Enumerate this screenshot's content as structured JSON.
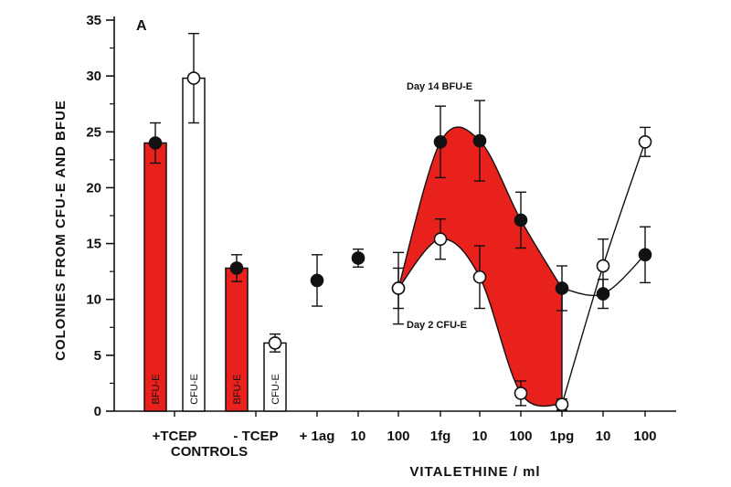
{
  "chart_data": {
    "type": "bar+line",
    "panel_label": "A",
    "ylabel": "COLONIES FROM CFU-E AND BFUE",
    "xlabel": "VITALETHINE / ml",
    "ylim": [
      0,
      35
    ],
    "yticks": [
      0,
      5,
      10,
      15,
      20,
      25,
      30,
      35
    ],
    "grid": false,
    "controls": {
      "group_label": "CONTROLS",
      "categories": [
        "+TCEP",
        "- TCEP"
      ],
      "bars": [
        {
          "group": "+TCEP",
          "series": "BFU-E",
          "label": "BFU-E",
          "value": 24,
          "err": 1.8,
          "fill": "#e8211c"
        },
        {
          "group": "+TCEP",
          "series": "CFU-E",
          "label": "CFU-E",
          "value": 29.8,
          "err": 4,
          "fill": "#ffffff"
        },
        {
          "group": "- TCEP",
          "series": "BFU-E",
          "label": "BFU-E",
          "value": 12.8,
          "err": 1.2,
          "fill": "#e8211c"
        },
        {
          "group": "- TCEP",
          "series": "CFU-E",
          "label": "CFU-E",
          "value": 6.1,
          "err": 0.8,
          "fill": "#ffffff"
        }
      ]
    },
    "dose_categories": [
      "+ 1ag",
      "10",
      "100",
      "1fg",
      "10",
      "100",
      "1pg",
      "10",
      "100"
    ],
    "series": [
      {
        "name": "Day 14 BFU-E",
        "marker": "filled-circle",
        "values": [
          11.7,
          13.7,
          11,
          24.1,
          24.2,
          17.1,
          11,
          10.5,
          14
        ],
        "errors": [
          2.3,
          0.8,
          3.2,
          3.2,
          3.6,
          2.5,
          2,
          1.3,
          2.5
        ]
      },
      {
        "name": "Day 2 CFU-E",
        "marker": "open-circle",
        "values": [
          null,
          null,
          11,
          15.4,
          12,
          1.6,
          0.6,
          13,
          24.1
        ],
        "errors": [
          null,
          null,
          1.8,
          1.8,
          2.8,
          1.1,
          0.5,
          2.4,
          1.3
        ]
      }
    ],
    "shaded_region_fill": "#e8211c",
    "line_color": "#111111"
  }
}
